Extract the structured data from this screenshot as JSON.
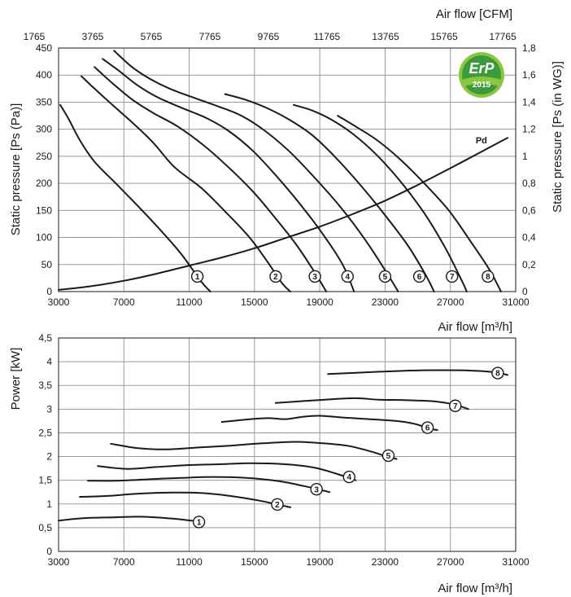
{
  "logo": {
    "text": "ErP",
    "year": "2015",
    "color_light": "#8cc63f",
    "color_dark": "#3a9a3c"
  },
  "chart_data": [
    {
      "type": "line",
      "name": "fan-pressure-curves",
      "xlabel": "Air flow [m³/h]",
      "x2label": "Air flow [CFM]",
      "ylabel": "Static pressure [Ps (Pa)]",
      "y2label": "Static pressure [Ps (in WG)]",
      "xlim": [
        3000,
        31000
      ],
      "ylim": [
        0,
        450
      ],
      "y2lim": [
        0,
        1.8
      ],
      "xticks": [
        3000,
        7000,
        11000,
        15000,
        19000,
        23000,
        27000,
        31000
      ],
      "yticks": [
        0,
        50,
        100,
        150,
        200,
        250,
        300,
        350,
        400,
        450
      ],
      "y2ticks": [
        "0",
        "0,2",
        "0,4",
        "0,6",
        "0,8",
        "1",
        "1,2",
        "1,4",
        "1,6",
        "1,8"
      ],
      "x2ticks": [
        "1765",
        "3765",
        "5765",
        "7765",
        "9765",
        "11765",
        "13765",
        "15765",
        "17765"
      ],
      "grid": true,
      "series": [
        {
          "name": "1",
          "points": [
            [
              3100,
              345
            ],
            [
              3600,
              320
            ],
            [
              4300,
              280
            ],
            [
              5200,
              240
            ],
            [
              6500,
              200
            ],
            [
              7800,
              160
            ],
            [
              9200,
              115
            ],
            [
              10500,
              70
            ],
            [
              11700,
              20
            ],
            [
              12300,
              0
            ]
          ]
        },
        {
          "name": "2",
          "points": [
            [
              4400,
              398
            ],
            [
              5200,
              375
            ],
            [
              6300,
              345
            ],
            [
              7600,
              310
            ],
            [
              8800,
              275
            ],
            [
              10100,
              230
            ],
            [
              11800,
              190
            ],
            [
              13300,
              145
            ],
            [
              14700,
              100
            ],
            [
              15800,
              55
            ],
            [
              16700,
              15
            ],
            [
              17200,
              0
            ]
          ]
        },
        {
          "name": "3",
          "points": [
            [
              5200,
              415
            ],
            [
              6300,
              385
            ],
            [
              7500,
              355
            ],
            [
              8800,
              330
            ],
            [
              10300,
              305
            ],
            [
              11900,
              270
            ],
            [
              13400,
              230
            ],
            [
              14900,
              185
            ],
            [
              16300,
              135
            ],
            [
              17600,
              85
            ],
            [
              18700,
              35
            ],
            [
              19400,
              0
            ]
          ]
        },
        {
          "name": "4",
          "points": [
            [
              5700,
              430
            ],
            [
              6700,
              408
            ],
            [
              7800,
              382
            ],
            [
              9000,
              360
            ],
            [
              10500,
              340
            ],
            [
              12100,
              320
            ],
            [
              13500,
              295
            ],
            [
              14900,
              260
            ],
            [
              16300,
              215
            ],
            [
              17700,
              165
            ],
            [
              19100,
              110
            ],
            [
              20400,
              50
            ],
            [
              21100,
              0
            ]
          ]
        },
        {
          "name": "5",
          "points": [
            [
              6400,
              445
            ],
            [
              7500,
              415
            ],
            [
              8600,
              393
            ],
            [
              9800,
              375
            ],
            [
              11300,
              358
            ],
            [
              12800,
              342
            ],
            [
              14200,
              325
            ],
            [
              15600,
              298
            ],
            [
              17100,
              260
            ],
            [
              18700,
              210
            ],
            [
              20300,
              155
            ],
            [
              21800,
              95
            ],
            [
              23200,
              30
            ],
            [
              23800,
              0
            ]
          ]
        },
        {
          "name": "6",
          "points": [
            [
              13200,
              365
            ],
            [
              14400,
              355
            ],
            [
              15700,
              340
            ],
            [
              17000,
              320
            ],
            [
              18500,
              290
            ],
            [
              19900,
              250
            ],
            [
              21400,
              200
            ],
            [
              22900,
              145
            ],
            [
              24400,
              85
            ],
            [
              25500,
              30
            ],
            [
              26000,
              0
            ]
          ]
        },
        {
          "name": "7",
          "points": [
            [
              17400,
              345
            ],
            [
              18500,
              335
            ],
            [
              19700,
              318
            ],
            [
              21000,
              292
            ],
            [
              22400,
              255
            ],
            [
              23900,
              205
            ],
            [
              25400,
              145
            ],
            [
              26700,
              80
            ],
            [
              27700,
              20
            ],
            [
              28000,
              0
            ]
          ]
        },
        {
          "name": "8",
          "points": [
            [
              20100,
              325
            ],
            [
              21200,
              305
            ],
            [
              22500,
              280
            ],
            [
              23900,
              245
            ],
            [
              25400,
              200
            ],
            [
              26900,
              150
            ],
            [
              28300,
              90
            ],
            [
              29400,
              40
            ],
            [
              30100,
              0
            ]
          ]
        },
        {
          "name": "Pd",
          "points": [
            [
              3000,
              3
            ],
            [
              5000,
              10
            ],
            [
              7000,
              20
            ],
            [
              9000,
              33
            ],
            [
              11000,
              48
            ],
            [
              13000,
              63
            ],
            [
              15000,
              80
            ],
            [
              17000,
              100
            ],
            [
              19000,
              120
            ],
            [
              21000,
              143
            ],
            [
              23000,
              168
            ],
            [
              25000,
              197
            ],
            [
              27000,
              228
            ],
            [
              29000,
              260
            ],
            [
              30500,
              284
            ]
          ]
        }
      ],
      "labels": [
        {
          "series": "1",
          "x": 11500,
          "y": 28
        },
        {
          "series": "2",
          "x": 16300,
          "y": 28
        },
        {
          "series": "3",
          "x": 18700,
          "y": 28
        },
        {
          "series": "4",
          "x": 20700,
          "y": 28
        },
        {
          "series": "5",
          "x": 23000,
          "y": 28
        },
        {
          "series": "6",
          "x": 25100,
          "y": 28
        },
        {
          "series": "7",
          "x": 27100,
          "y": 28
        },
        {
          "series": "8",
          "x": 29300,
          "y": 28
        },
        {
          "series": "Pd",
          "x": 28900,
          "y": 280
        }
      ]
    },
    {
      "type": "line",
      "name": "fan-power-curves",
      "xlabel": "Air flow [m³/h]",
      "ylabel": "Power [kW]",
      "xlim": [
        3000,
        31000
      ],
      "ylim": [
        0,
        4.5
      ],
      "xticks": [
        3000,
        7000,
        11000,
        15000,
        19000,
        23000,
        27000,
        31000
      ],
      "yticks": [
        "0",
        "0,5",
        "1",
        "1,5",
        "2",
        "2,5",
        "3",
        "3,5",
        "4",
        "4,5"
      ],
      "grid": true,
      "series": [
        {
          "name": "1",
          "points": [
            [
              3000,
              0.65
            ],
            [
              4500,
              0.7
            ],
            [
              6500,
              0.72
            ],
            [
              8200,
              0.73
            ],
            [
              10000,
              0.69
            ],
            [
              11800,
              0.62
            ]
          ]
        },
        {
          "name": "2",
          "points": [
            [
              4300,
              1.15
            ],
            [
              6000,
              1.17
            ],
            [
              8000,
              1.22
            ],
            [
              10000,
              1.24
            ],
            [
              11800,
              1.23
            ],
            [
              13500,
              1.17
            ],
            [
              15300,
              1.07
            ],
            [
              16500,
              0.98
            ],
            [
              17200,
              0.93
            ]
          ]
        },
        {
          "name": "3",
          "points": [
            [
              4800,
              1.49
            ],
            [
              6500,
              1.49
            ],
            [
              8500,
              1.52
            ],
            [
              10500,
              1.55
            ],
            [
              12500,
              1.57
            ],
            [
              14500,
              1.55
            ],
            [
              16500,
              1.48
            ],
            [
              18000,
              1.38
            ],
            [
              19000,
              1.3
            ],
            [
              19600,
              1.25
            ]
          ]
        },
        {
          "name": "4",
          "points": [
            [
              5400,
              1.8
            ],
            [
              7200,
              1.74
            ],
            [
              9000,
              1.78
            ],
            [
              11000,
              1.82
            ],
            [
              13000,
              1.84
            ],
            [
              14800,
              1.86
            ],
            [
              16800,
              1.84
            ],
            [
              18600,
              1.77
            ],
            [
              20000,
              1.64
            ],
            [
              21200,
              1.5
            ]
          ]
        },
        {
          "name": "5",
          "points": [
            [
              6200,
              2.27
            ],
            [
              7800,
              2.18
            ],
            [
              9500,
              2.15
            ],
            [
              11500,
              2.19
            ],
            [
              13500,
              2.23
            ],
            [
              15500,
              2.28
            ],
            [
              17500,
              2.31
            ],
            [
              19200,
              2.28
            ],
            [
              20800,
              2.22
            ],
            [
              22200,
              2.1
            ],
            [
              23100,
              2.0
            ],
            [
              23700,
              1.95
            ]
          ]
        },
        {
          "name": "6",
          "points": [
            [
              13000,
              2.73
            ],
            [
              14500,
              2.78
            ],
            [
              15800,
              2.81
            ],
            [
              16900,
              2.79
            ],
            [
              18000,
              2.84
            ],
            [
              19000,
              2.86
            ],
            [
              20500,
              2.82
            ],
            [
              22000,
              2.79
            ],
            [
              23700,
              2.75
            ],
            [
              24800,
              2.69
            ],
            [
              25700,
              2.59
            ],
            [
              26200,
              2.56
            ]
          ]
        },
        {
          "name": "7",
          "points": [
            [
              16300,
              3.13
            ],
            [
              18000,
              3.17
            ],
            [
              19800,
              3.21
            ],
            [
              21200,
              3.23
            ],
            [
              22600,
              3.2
            ],
            [
              24200,
              3.19
            ],
            [
              25800,
              3.17
            ],
            [
              26900,
              3.12
            ],
            [
              27700,
              3.05
            ],
            [
              28100,
              3.0
            ]
          ]
        },
        {
          "name": "8",
          "points": [
            [
              19500,
              3.74
            ],
            [
              21500,
              3.77
            ],
            [
              23500,
              3.8
            ],
            [
              25500,
              3.82
            ],
            [
              27500,
              3.82
            ],
            [
              29000,
              3.8
            ],
            [
              30000,
              3.76
            ],
            [
              30500,
              3.72
            ]
          ]
        }
      ],
      "labels": [
        {
          "series": "1",
          "x": 11600,
          "y": 0.62
        },
        {
          "series": "2",
          "x": 16400,
          "y": 0.99
        },
        {
          "series": "3",
          "x": 18800,
          "y": 1.31
        },
        {
          "series": "4",
          "x": 20800,
          "y": 1.57
        },
        {
          "series": "5",
          "x": 23200,
          "y": 2.02
        },
        {
          "series": "6",
          "x": 25600,
          "y": 2.61
        },
        {
          "series": "7",
          "x": 27300,
          "y": 3.07
        },
        {
          "series": "8",
          "x": 29900,
          "y": 3.76
        }
      ]
    }
  ]
}
